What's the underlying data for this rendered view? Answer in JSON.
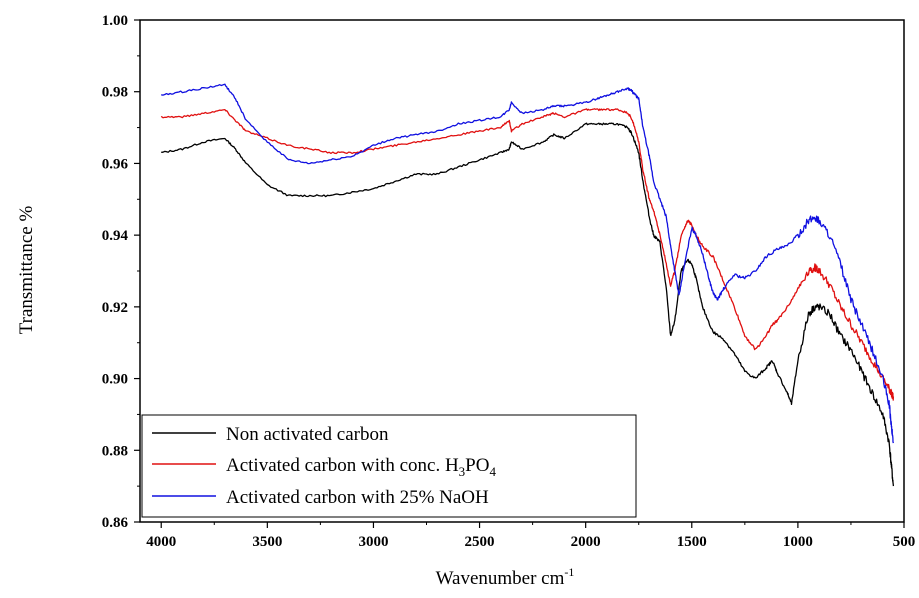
{
  "chart_data": {
    "type": "line",
    "title": "",
    "xlabel": "Wavenumber cm",
    "xlabel_sup": "-1",
    "ylabel": "Transmittance %",
    "xlim": [
      4100,
      500
    ],
    "ylim": [
      0.86,
      1.0
    ],
    "x_reversed": true,
    "x_ticks": [
      4000,
      3500,
      3000,
      2500,
      2000,
      1500,
      1000,
      500
    ],
    "x_tick_labels": [
      "4000",
      "3500",
      "3000",
      "2500",
      "2000",
      "1500",
      "1000",
      "500"
    ],
    "y_ticks": [
      0.86,
      0.88,
      0.9,
      0.92,
      0.94,
      0.96,
      0.98,
      1.0
    ],
    "y_tick_labels": [
      "0.86",
      "0.88",
      "0.90",
      "0.92",
      "0.94",
      "0.96",
      "0.98",
      "1.00"
    ],
    "grid": false,
    "legend_position": "bottom-left",
    "series": [
      {
        "name": "Non activated carbon",
        "color": "#000000",
        "x": [
          4000,
          3900,
          3800,
          3700,
          3650,
          3600,
          3500,
          3400,
          3300,
          3200,
          3100,
          3000,
          2900,
          2800,
          2700,
          2600,
          2500,
          2400,
          2360,
          2350,
          2300,
          2200,
          2150,
          2100,
          2000,
          1950,
          1900,
          1850,
          1800,
          1780,
          1750,
          1730,
          1700,
          1680,
          1650,
          1620,
          1600,
          1580,
          1550,
          1520,
          1500,
          1480,
          1450,
          1400,
          1350,
          1300,
          1250,
          1200,
          1150,
          1120,
          1100,
          1050,
          1030,
          1000,
          950,
          920,
          900,
          850,
          800,
          750,
          700,
          650,
          600,
          570,
          560,
          550
        ],
        "values": [
          0.963,
          0.964,
          0.966,
          0.967,
          0.964,
          0.96,
          0.954,
          0.951,
          0.951,
          0.951,
          0.952,
          0.953,
          0.955,
          0.957,
          0.957,
          0.959,
          0.961,
          0.963,
          0.964,
          0.966,
          0.964,
          0.966,
          0.968,
          0.967,
          0.971,
          0.971,
          0.971,
          0.971,
          0.97,
          0.968,
          0.963,
          0.955,
          0.945,
          0.94,
          0.938,
          0.925,
          0.912,
          0.916,
          0.93,
          0.933,
          0.932,
          0.928,
          0.92,
          0.913,
          0.911,
          0.907,
          0.902,
          0.9,
          0.903,
          0.905,
          0.902,
          0.896,
          0.893,
          0.905,
          0.918,
          0.92,
          0.92,
          0.918,
          0.912,
          0.908,
          0.902,
          0.896,
          0.89,
          0.882,
          0.876,
          0.87
        ]
      },
      {
        "name": "Activated carbon with conc. H3PO4",
        "color": "#e01010",
        "x": [
          4000,
          3900,
          3800,
          3700,
          3650,
          3600,
          3500,
          3400,
          3300,
          3200,
          3100,
          3000,
          2900,
          2800,
          2700,
          2600,
          2500,
          2400,
          2360,
          2350,
          2300,
          2200,
          2150,
          2100,
          2000,
          1950,
          1900,
          1850,
          1800,
          1780,
          1750,
          1730,
          1700,
          1680,
          1650,
          1620,
          1600,
          1580,
          1550,
          1520,
          1500,
          1480,
          1450,
          1400,
          1350,
          1300,
          1250,
          1200,
          1150,
          1120,
          1100,
          1050,
          1000,
          950,
          920,
          900,
          850,
          800,
          750,
          700,
          650,
          600,
          570,
          560,
          550
        ],
        "values": [
          0.973,
          0.973,
          0.974,
          0.975,
          0.972,
          0.969,
          0.967,
          0.965,
          0.964,
          0.963,
          0.963,
          0.964,
          0.965,
          0.966,
          0.967,
          0.968,
          0.969,
          0.97,
          0.972,
          0.969,
          0.971,
          0.973,
          0.974,
          0.973,
          0.975,
          0.975,
          0.975,
          0.975,
          0.974,
          0.972,
          0.966,
          0.958,
          0.95,
          0.947,
          0.94,
          0.932,
          0.926,
          0.93,
          0.94,
          0.944,
          0.943,
          0.94,
          0.937,
          0.934,
          0.927,
          0.92,
          0.912,
          0.908,
          0.912,
          0.915,
          0.916,
          0.92,
          0.925,
          0.93,
          0.931,
          0.93,
          0.926,
          0.92,
          0.915,
          0.91,
          0.905,
          0.9,
          0.897,
          0.896,
          0.895
        ]
      },
      {
        "name": "Activated carbon with 25% NaOH",
        "color": "#1010e0",
        "x": [
          4000,
          3900,
          3800,
          3700,
          3650,
          3600,
          3500,
          3400,
          3300,
          3200,
          3100,
          3000,
          2900,
          2800,
          2700,
          2600,
          2500,
          2400,
          2360,
          2350,
          2300,
          2200,
          2150,
          2100,
          2000,
          1950,
          1900,
          1850,
          1800,
          1780,
          1750,
          1730,
          1700,
          1680,
          1650,
          1620,
          1600,
          1580,
          1560,
          1540,
          1500,
          1480,
          1450,
          1420,
          1400,
          1380,
          1350,
          1300,
          1250,
          1200,
          1150,
          1100,
          1050,
          1000,
          950,
          920,
          900,
          850,
          800,
          750,
          700,
          650,
          600,
          570,
          560,
          550
        ],
        "values": [
          0.979,
          0.98,
          0.981,
          0.982,
          0.978,
          0.972,
          0.966,
          0.961,
          0.96,
          0.961,
          0.962,
          0.965,
          0.967,
          0.968,
          0.969,
          0.971,
          0.972,
          0.973,
          0.975,
          0.977,
          0.974,
          0.975,
          0.976,
          0.976,
          0.977,
          0.978,
          0.979,
          0.98,
          0.981,
          0.98,
          0.978,
          0.97,
          0.962,
          0.955,
          0.95,
          0.945,
          0.937,
          0.93,
          0.923,
          0.93,
          0.942,
          0.94,
          0.935,
          0.928,
          0.924,
          0.922,
          0.925,
          0.929,
          0.928,
          0.93,
          0.934,
          0.936,
          0.937,
          0.94,
          0.944,
          0.945,
          0.944,
          0.94,
          0.932,
          0.922,
          0.915,
          0.908,
          0.9,
          0.893,
          0.887,
          0.882
        ]
      }
    ],
    "legend": [
      {
        "label": "Non activated carbon",
        "color": "#000000"
      },
      {
        "label": "Activated carbon with conc. H",
        "sub1": "3",
        "mid": "PO",
        "sub2": "4",
        "color": "#e01010"
      },
      {
        "label": "Activated carbon with 25% NaOH",
        "color": "#1010e0"
      }
    ]
  }
}
